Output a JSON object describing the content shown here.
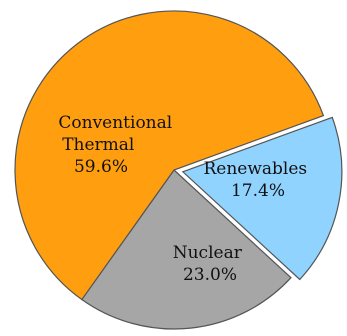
{
  "chart_data": {
    "type": "pie",
    "title": "",
    "slices": [
      {
        "label": "Renewables",
        "value": 17.4,
        "display": "17.4%",
        "color": "#8fd3fe",
        "exploded": true
      },
      {
        "label": "Nuclear",
        "value": 23.0,
        "display": "23.0%",
        "color": "#a6a6a6",
        "exploded": false
      },
      {
        "label": "Conventional Thermal",
        "value": 59.6,
        "display": "59.6%",
        "color": "#ff9f10",
        "exploded": false
      }
    ],
    "legend": "none",
    "label_lines": {
      "renewables": [
        "Renewables",
        "17.4%"
      ],
      "nuclear": [
        "Nuclear",
        "23.0%"
      ],
      "thermal": [
        "Conventional",
        "Thermal",
        "59.6%"
      ]
    }
  }
}
